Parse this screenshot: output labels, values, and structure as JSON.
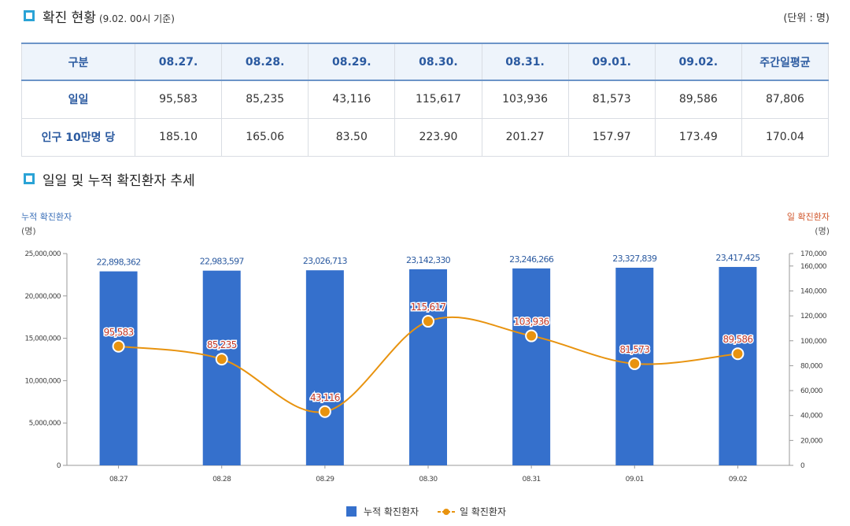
{
  "section1": {
    "title": "확진 현황",
    "subtitle": "(9.02. 00시 기준)",
    "unit": "(단위 : 명)"
  },
  "table": {
    "headers": [
      "구분",
      "08.27.",
      "08.28.",
      "08.29.",
      "08.30.",
      "08.31.",
      "09.01.",
      "09.02.",
      "주간일평균"
    ],
    "rows": [
      {
        "label": "일일",
        "values": [
          "95,583",
          "85,235",
          "43,116",
          "115,617",
          "103,936",
          "81,573",
          "89,586",
          "87,806"
        ]
      },
      {
        "label": "인구 10만명 당",
        "values": [
          "185.10",
          "165.06",
          "83.50",
          "223.90",
          "201.27",
          "157.97",
          "173.49",
          "170.04"
        ]
      }
    ]
  },
  "section2": {
    "title": "일일 및 누적 확진환자 추세"
  },
  "colors": {
    "bar": "#3570cc",
    "line": "#e8930f",
    "left_axis_title": "#3a6fb8",
    "right_axis_title": "#d0552a",
    "label_red": "#c0392b",
    "label_blue": "#2b5aa0"
  },
  "chart_data": {
    "type": "bar+line",
    "categories": [
      "08.27",
      "08.28",
      "08.29",
      "08.30",
      "08.31",
      "09.01",
      "09.02"
    ],
    "series": [
      {
        "name": "누적 확진환자",
        "type": "bar",
        "axis": "left",
        "values": [
          22898362,
          22983597,
          23026713,
          23142330,
          23246266,
          23327839,
          23417425
        ],
        "labels": [
          "22,898,362",
          "22,983,597",
          "23,026,713",
          "23,142,330",
          "23,246,266",
          "23,327,839",
          "23,417,425"
        ]
      },
      {
        "name": "일 확진환자",
        "type": "line",
        "axis": "right",
        "values": [
          95583,
          85235,
          43116,
          115617,
          103936,
          81573,
          89586
        ],
        "labels": [
          "95,583",
          "85,235",
          "43,116",
          "115,617",
          "103,936",
          "81,573",
          "89,586"
        ]
      }
    ],
    "left_axis": {
      "title": "누적 확진환자",
      "unit": "(명)",
      "range": [
        0,
        25000000
      ],
      "ticks": [
        0,
        5000000,
        10000000,
        15000000,
        20000000,
        25000000
      ],
      "tick_labels": [
        "0",
        "5,000,000",
        "10,000,000",
        "15,000,000",
        "20,000,000",
        "25,000,000"
      ]
    },
    "right_axis": {
      "title": "일 확진환자",
      "unit": "(명)",
      "range": [
        0,
        170000
      ],
      "ticks": [
        0,
        20000,
        40000,
        60000,
        80000,
        100000,
        120000,
        140000,
        160000,
        170000
      ],
      "tick_labels": [
        "0",
        "20,000",
        "40,000",
        "60,000",
        "80,000",
        "100,000",
        "120,000",
        "140,000",
        "160,000",
        "170,000"
      ]
    },
    "legend": {
      "position": "bottom-center",
      "items": [
        "누적 확진환자",
        "일 확진환자"
      ]
    }
  }
}
